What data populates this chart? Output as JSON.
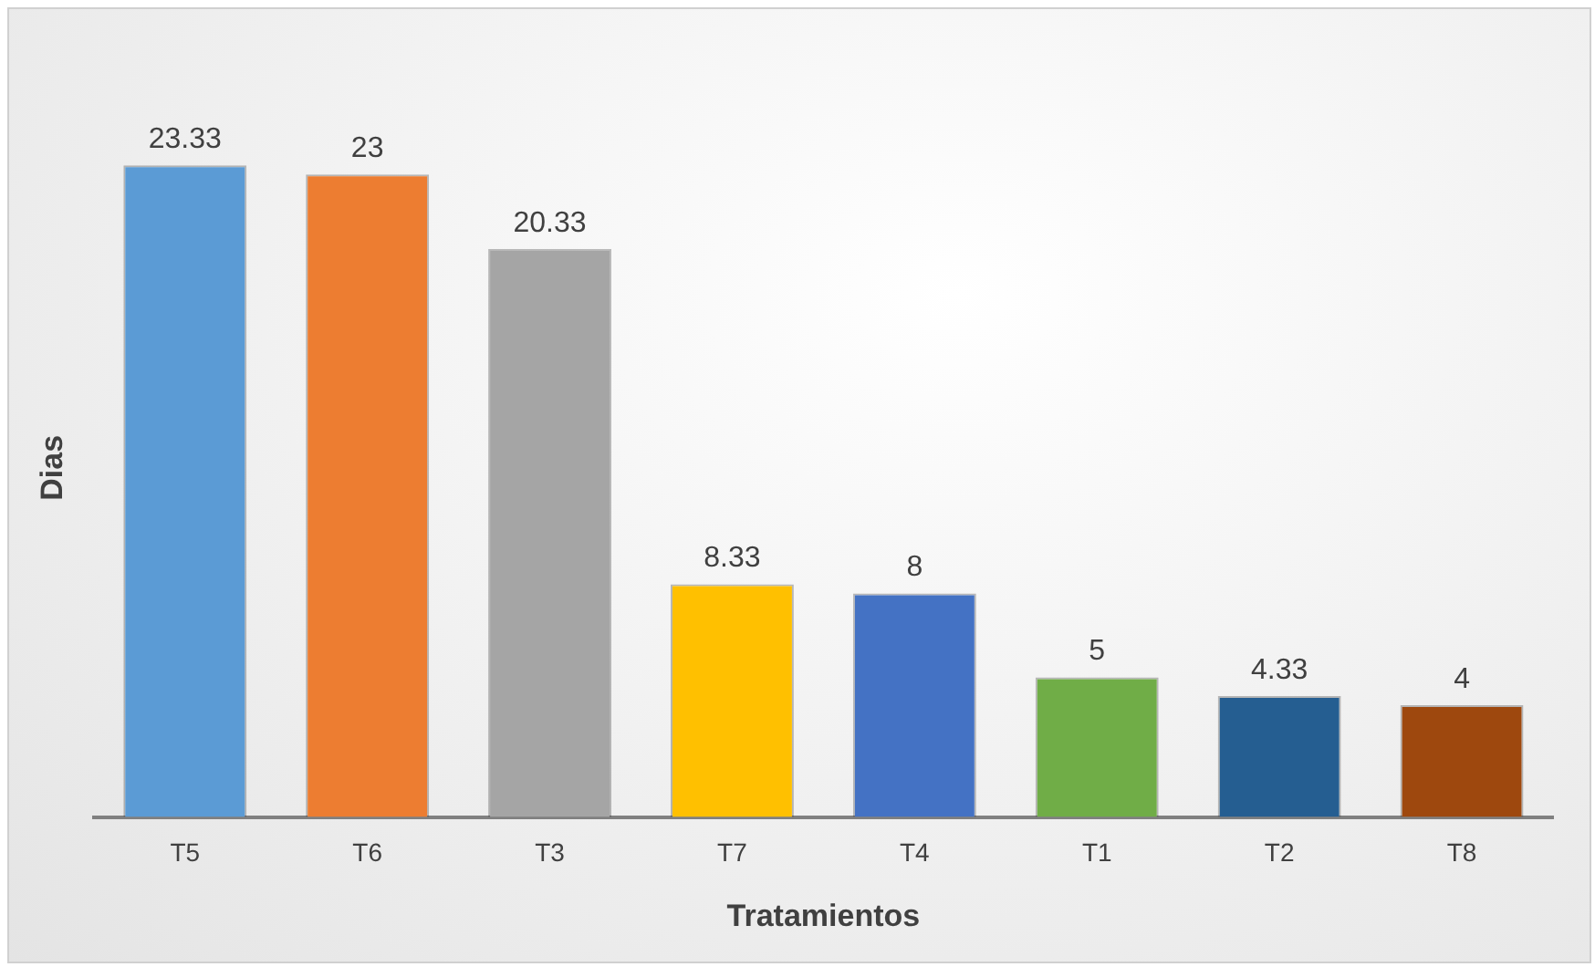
{
  "chart_data": {
    "type": "bar",
    "xlabel": "Tratamientos",
    "ylabel": "Dias",
    "categories": [
      "T5",
      "T6",
      "T3",
      "T7",
      "T4",
      "T1",
      "T2",
      "T8"
    ],
    "values": [
      23.33,
      23,
      20.33,
      8.33,
      8,
      5,
      4.33,
      4
    ],
    "colors": [
      "#5b9bd5",
      "#ed7d31",
      "#a5a5a5",
      "#ffc000",
      "#4472c4",
      "#70ad47",
      "#255e91",
      "#9e480e"
    ],
    "data_labels": true,
    "grid": false,
    "legend": false
  }
}
